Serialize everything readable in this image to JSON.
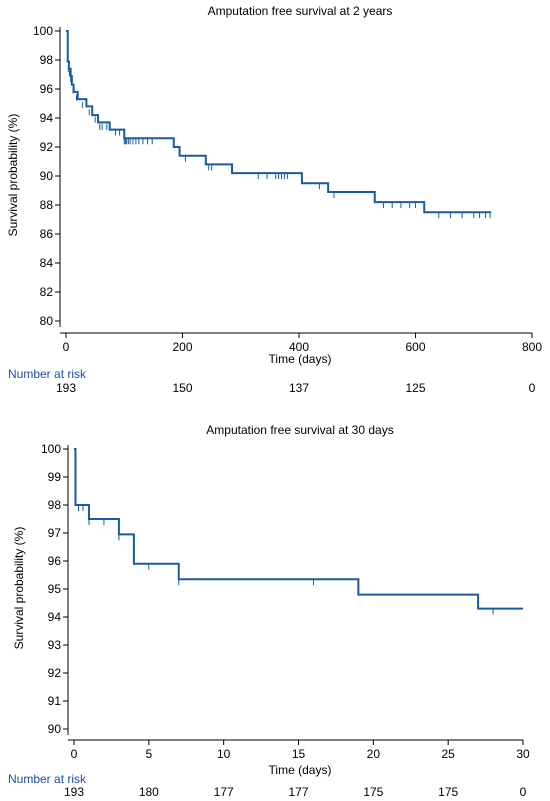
{
  "chart_data": [
    {
      "type": "line",
      "subtype": "kaplan-meier",
      "title": "Amputation free survival at 2 years",
      "xlabel": "Time (days)",
      "ylabel": "Survival probability (%)",
      "xlim": [
        0,
        800
      ],
      "ylim": [
        80,
        100
      ],
      "xticks": [
        0,
        200,
        400,
        600,
        800
      ],
      "yticks": [
        80,
        82,
        84,
        86,
        88,
        90,
        92,
        94,
        96,
        98,
        100
      ],
      "grid": false,
      "series": [
        {
          "steps": [
            [
              0,
              100
            ],
            [
              3,
              97.9
            ],
            [
              5,
              97.4
            ],
            [
              8,
              96.9
            ],
            [
              10,
              96.3
            ],
            [
              13,
              95.8
            ],
            [
              20,
              95.3
            ],
            [
              35,
              94.8
            ],
            [
              45,
              94.2
            ],
            [
              55,
              93.7
            ],
            [
              75,
              93.2
            ],
            [
              100,
              92.6
            ],
            [
              185,
              92.0
            ],
            [
              195,
              91.4
            ],
            [
              240,
              90.8
            ],
            [
              285,
              90.2
            ],
            [
              405,
              89.5
            ],
            [
              450,
              88.9
            ],
            [
              530,
              88.2
            ],
            [
              615,
              87.5
            ],
            [
              730,
              87.5
            ]
          ],
          "censored": [
            [
              4,
              97.6
            ],
            [
              6,
              97.3
            ],
            [
              8,
              96.9
            ],
            [
              12,
              96.1
            ],
            [
              18,
              95.6
            ],
            [
              28,
              95.1
            ],
            [
              40,
              94.6
            ],
            [
              50,
              94.1
            ],
            [
              58,
              93.6
            ],
            [
              62,
              93.6
            ],
            [
              70,
              93.6
            ],
            [
              85,
              93.2
            ],
            [
              92,
              93.2
            ],
            [
              100,
              92.6
            ],
            [
              102,
              92.6
            ],
            [
              104,
              92.6
            ],
            [
              107,
              92.6
            ],
            [
              110,
              92.6
            ],
            [
              115,
              92.6
            ],
            [
              120,
              92.6
            ],
            [
              125,
              92.6
            ],
            [
              132,
              92.6
            ],
            [
              140,
              92.6
            ],
            [
              148,
              92.6
            ],
            [
              205,
              91.4
            ],
            [
              245,
              90.8
            ],
            [
              250,
              90.8
            ],
            [
              330,
              90.2
            ],
            [
              345,
              90.2
            ],
            [
              360,
              90.2
            ],
            [
              365,
              90.2
            ],
            [
              370,
              90.2
            ],
            [
              375,
              90.2
            ],
            [
              380,
              90.2
            ],
            [
              435,
              89.5
            ],
            [
              460,
              88.9
            ],
            [
              545,
              88.2
            ],
            [
              560,
              88.2
            ],
            [
              575,
              88.2
            ],
            [
              590,
              88.2
            ],
            [
              600,
              88.2
            ],
            [
              640,
              87.5
            ],
            [
              660,
              87.5
            ],
            [
              680,
              87.5
            ],
            [
              700,
              87.5
            ],
            [
              710,
              87.5
            ],
            [
              720,
              87.5
            ],
            [
              728,
              87.5
            ]
          ]
        }
      ],
      "risk_table": {
        "label": "Number at risk",
        "times": [
          0,
          200,
          400,
          600,
          800
        ],
        "values": [
          "193",
          "150",
          "137",
          "125",
          "0"
        ]
      }
    },
    {
      "type": "line",
      "subtype": "kaplan-meier",
      "title": "Amputation free survival at 30 days",
      "xlabel": "Time (days)",
      "ylabel": "Survival probability (%)",
      "xlim": [
        0,
        30
      ],
      "ylim": [
        90,
        100
      ],
      "xticks": [
        0,
        5,
        10,
        15,
        20,
        25,
        30
      ],
      "yticks": [
        90,
        91,
        92,
        93,
        94,
        95,
        96,
        97,
        98,
        99,
        100
      ],
      "grid": false,
      "series": [
        {
          "steps": [
            [
              0,
              100
            ],
            [
              0.1,
              98.0
            ],
            [
              1,
              97.5
            ],
            [
              3,
              96.95
            ],
            [
              4,
              95.9
            ],
            [
              7,
              95.35
            ],
            [
              19,
              94.8
            ],
            [
              27,
              94.3
            ],
            [
              30,
              94.3
            ]
          ],
          "censored": [
            [
              0.3,
              98.0
            ],
            [
              0.6,
              98.0
            ],
            [
              1,
              97.5
            ],
            [
              2,
              97.5
            ],
            [
              3,
              96.95
            ],
            [
              5,
              95.9
            ],
            [
              7,
              95.35
            ],
            [
              16,
              95.35
            ],
            [
              28,
              94.3
            ]
          ]
        }
      ],
      "risk_table": {
        "label": "Number at risk",
        "times": [
          0,
          5,
          10,
          15,
          20,
          25,
          30
        ],
        "values": [
          "193",
          "180",
          "177",
          "177",
          "175",
          "175",
          "0"
        ]
      }
    }
  ]
}
